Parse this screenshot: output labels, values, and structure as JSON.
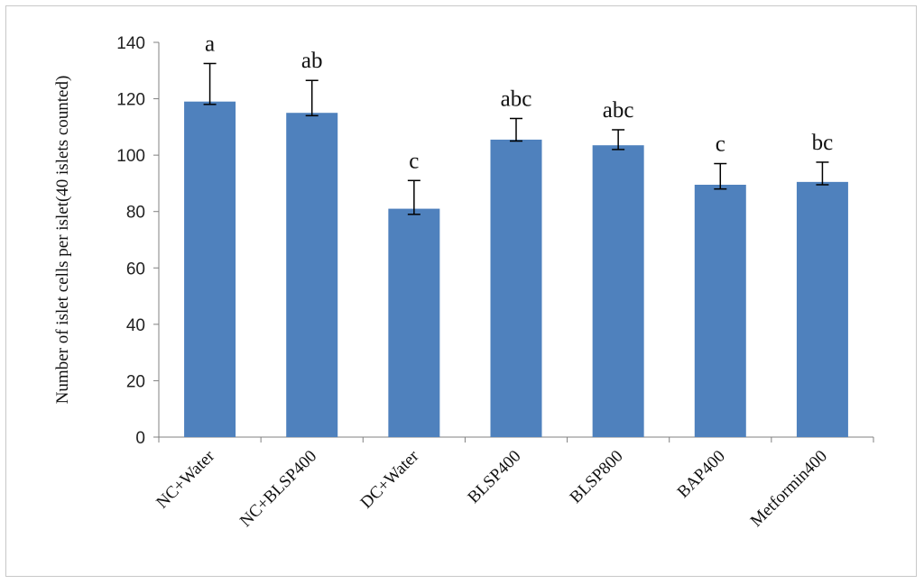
{
  "chart_data": {
    "type": "bar",
    "ylabel": "Number of islet cells per islet(40 islets counted)",
    "xlabel": "",
    "ylim": [
      0,
      140
    ],
    "yticks": [
      0,
      20,
      40,
      60,
      80,
      100,
      120,
      140
    ],
    "grid": false,
    "legend": "none",
    "bar_color": "#4f81bd",
    "categories": [
      "NC+Water",
      "NC+BLSP400",
      "DC+Water",
      "BLSP400",
      "BLSP800",
      "BAP400",
      "Metformin400"
    ],
    "values": [
      119,
      115,
      81,
      105.5,
      103.5,
      89.5,
      90.5
    ],
    "error_plus": [
      13.5,
      11.5,
      10,
      7.5,
      5.5,
      7.5,
      7
    ],
    "error_minus": [
      1,
      1,
      2,
      0.5,
      1.5,
      1.5,
      1
    ],
    "significance_labels": [
      "a",
      "ab",
      "c",
      "abc",
      "abc",
      "c",
      "bc"
    ]
  }
}
